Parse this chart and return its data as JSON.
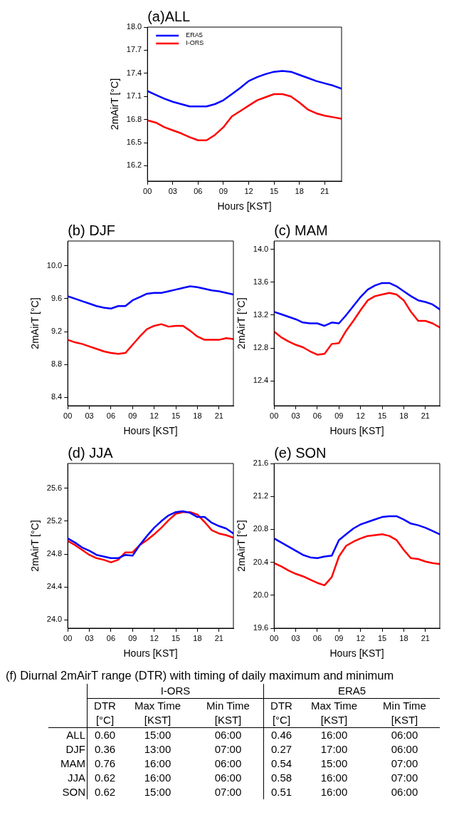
{
  "chart_data": [
    {
      "type": "line",
      "title": "(a)ALL",
      "xlabel": "Hours [KST]",
      "ylabel": "2mAirT [°C]",
      "legend": "top left",
      "x": [
        0,
        1,
        2,
        3,
        4,
        5,
        6,
        7,
        8,
        9,
        10,
        11,
        12,
        13,
        14,
        15,
        16,
        17,
        18,
        19,
        20,
        21,
        22,
        23
      ],
      "xlim": [
        0,
        23
      ],
      "xticks": [
        {
          "value": 0,
          "label": "00"
        },
        {
          "value": 3,
          "label": "03"
        },
        {
          "value": 6,
          "label": "06"
        },
        {
          "value": 9,
          "label": "09"
        },
        12,
        15,
        18,
        21
      ],
      "ylim": [
        16.0,
        18.0
      ],
      "yticks": [
        16.2,
        16.5,
        16.8,
        17.1,
        17.4,
        17.7,
        {
          "value": 18,
          "label": "18.0"
        }
      ],
      "series": [
        {
          "name": "ERA5",
          "color": "#0000ff",
          "values": [
            17.17,
            17.12,
            17.07,
            17.03,
            17.0,
            16.97,
            16.97,
            16.97,
            17.0,
            17.05,
            17.13,
            17.21,
            17.3,
            17.35,
            17.39,
            17.42,
            17.43,
            17.42,
            17.38,
            17.34,
            17.3,
            17.27,
            17.24,
            17.2
          ]
        },
        {
          "name": "I-ORS",
          "color": "#ff0000",
          "values": [
            16.79,
            16.76,
            16.7,
            16.66,
            16.62,
            16.57,
            16.53,
            16.53,
            16.6,
            16.7,
            16.84,
            16.91,
            16.98,
            17.05,
            17.09,
            17.13,
            17.13,
            17.1,
            17.02,
            16.93,
            16.88,
            16.85,
            16.83,
            16.81
          ]
        }
      ]
    },
    {
      "type": "line",
      "title": "(b) DJF",
      "xlabel": "Hours [KST]",
      "ylabel": "2mAirT [°C]",
      "x": [
        0,
        1,
        2,
        3,
        4,
        5,
        6,
        7,
        8,
        9,
        10,
        11,
        12,
        13,
        14,
        15,
        16,
        17,
        18,
        19,
        20,
        21,
        22,
        23
      ],
      "xlim": [
        0,
        23
      ],
      "xticks": [
        {
          "value": 0,
          "label": "00"
        },
        {
          "value": 3,
          "label": "03"
        },
        {
          "value": 6,
          "label": "06"
        },
        {
          "value": 9,
          "label": "09"
        },
        12,
        15,
        18,
        21
      ],
      "ylim": [
        8.3,
        10.3
      ],
      "yticks": [
        8.4,
        8.8,
        9.2,
        9.6,
        {
          "value": 10,
          "label": "10.0"
        }
      ],
      "series": [
        {
          "color": "#0000ff",
          "values": [
            9.63,
            9.6,
            9.57,
            9.54,
            9.51,
            9.49,
            9.48,
            9.51,
            9.51,
            9.58,
            9.62,
            9.66,
            9.67,
            9.67,
            9.69,
            9.71,
            9.73,
            9.75,
            9.74,
            9.72,
            9.7,
            9.69,
            9.67,
            9.65
          ]
        },
        {
          "color": "#ff0000",
          "values": [
            9.1,
            9.07,
            9.05,
            9.02,
            8.99,
            8.96,
            8.94,
            8.93,
            8.94,
            9.04,
            9.14,
            9.23,
            9.27,
            9.29,
            9.26,
            9.27,
            9.27,
            9.21,
            9.14,
            9.1,
            9.1,
            9.1,
            9.12,
            9.11
          ]
        }
      ]
    },
    {
      "type": "line",
      "title": "(c) MAM",
      "xlabel": "Hours [KST]",
      "ylabel": "2mAirT [°C]",
      "x": [
        0,
        1,
        2,
        3,
        4,
        5,
        6,
        7,
        8,
        9,
        10,
        11,
        12,
        13,
        14,
        15,
        16,
        17,
        18,
        19,
        20,
        21,
        22,
        23
      ],
      "xlim": [
        0,
        23
      ],
      "xticks": [
        {
          "value": 0,
          "label": "00"
        },
        {
          "value": 3,
          "label": "03"
        },
        {
          "value": 6,
          "label": "06"
        },
        {
          "value": 9,
          "label": "09"
        },
        12,
        15,
        18,
        21
      ],
      "ylim": [
        12.1,
        14.1
      ],
      "yticks": [
        12.4,
        12.8,
        13.2,
        13.6,
        {
          "value": 14,
          "label": "14.0"
        }
      ],
      "series": [
        {
          "color": "#0000ff",
          "values": [
            13.24,
            13.21,
            13.18,
            13.15,
            13.11,
            13.1,
            13.1,
            13.07,
            13.11,
            13.1,
            13.2,
            13.31,
            13.42,
            13.51,
            13.56,
            13.59,
            13.59,
            13.55,
            13.49,
            13.43,
            13.38,
            13.36,
            13.33,
            13.27
          ]
        },
        {
          "color": "#ff0000",
          "values": [
            13.0,
            12.93,
            12.88,
            12.84,
            12.81,
            12.76,
            12.72,
            12.73,
            12.85,
            12.86,
            13.01,
            13.13,
            13.26,
            13.38,
            13.43,
            13.45,
            13.47,
            13.45,
            13.38,
            13.24,
            13.13,
            13.13,
            13.1,
            13.05
          ]
        }
      ]
    },
    {
      "type": "line",
      "title": "(d) JJA",
      "xlabel": "Hours [KST]",
      "ylabel": "2mAirT [°C]",
      "x": [
        0,
        1,
        2,
        3,
        4,
        5,
        6,
        7,
        8,
        9,
        10,
        11,
        12,
        13,
        14,
        15,
        16,
        17,
        18,
        19,
        20,
        21,
        22,
        23
      ],
      "xlim": [
        0,
        23
      ],
      "xticks": [
        {
          "value": 0,
          "label": "00"
        },
        {
          "value": 3,
          "label": "03"
        },
        {
          "value": 6,
          "label": "06"
        },
        {
          "value": 9,
          "label": "09"
        },
        12,
        15,
        18,
        21
      ],
      "ylim": [
        23.9,
        25.9
      ],
      "yticks": [
        {
          "value": 24,
          "label": "24.0"
        },
        24.4,
        24.8,
        25.2,
        25.6
      ],
      "series": [
        {
          "color": "#0000ff",
          "values": [
            24.99,
            24.94,
            24.88,
            24.84,
            24.79,
            24.77,
            24.75,
            24.75,
            24.79,
            24.78,
            24.91,
            25.02,
            25.12,
            25.2,
            25.27,
            25.31,
            25.32,
            25.3,
            25.25,
            25.25,
            25.18,
            25.14,
            25.11,
            25.05
          ]
        },
        {
          "color": "#ff0000",
          "values": [
            24.96,
            24.91,
            24.85,
            24.79,
            24.75,
            24.73,
            24.7,
            24.73,
            24.82,
            24.82,
            24.91,
            24.97,
            25.04,
            25.12,
            25.21,
            25.29,
            25.31,
            25.31,
            25.28,
            25.19,
            25.09,
            25.05,
            25.03,
            25.0
          ]
        }
      ]
    },
    {
      "type": "line",
      "title": "(e) SON",
      "xlabel": "Hours [KST]",
      "ylabel": "2mAirT [°C]",
      "x": [
        0,
        1,
        2,
        3,
        4,
        5,
        6,
        7,
        8,
        9,
        10,
        11,
        12,
        13,
        14,
        15,
        16,
        17,
        18,
        19,
        20,
        21,
        22,
        23
      ],
      "xlim": [
        0,
        23
      ],
      "xticks": [
        {
          "value": 0,
          "label": "00"
        },
        {
          "value": 3,
          "label": "03"
        },
        {
          "value": 6,
          "label": "06"
        },
        {
          "value": 9,
          "label": "09"
        },
        12,
        15,
        18,
        21
      ],
      "ylim": [
        19.6,
        21.6
      ],
      "yticks": [
        19.6,
        {
          "value": 20,
          "label": "20.0"
        },
        20.4,
        20.8,
        21.2,
        21.6
      ],
      "series": [
        {
          "color": "#0000ff",
          "values": [
            20.69,
            20.64,
            20.59,
            20.54,
            20.49,
            20.46,
            20.45,
            20.47,
            20.48,
            20.67,
            20.74,
            20.81,
            20.86,
            20.89,
            20.92,
            20.95,
            20.96,
            20.96,
            20.92,
            20.87,
            20.85,
            20.82,
            20.78,
            20.74
          ]
        },
        {
          "color": "#ff0000",
          "values": [
            20.39,
            20.35,
            20.3,
            20.26,
            20.23,
            20.19,
            20.15,
            20.12,
            20.22,
            20.47,
            20.6,
            20.65,
            20.69,
            20.72,
            20.73,
            20.74,
            20.72,
            20.67,
            20.55,
            20.45,
            20.44,
            20.41,
            20.39,
            20.38
          ]
        }
      ]
    },
    {
      "type": "other",
      "title": "(f) Diurnal 2mAirT range (DTR) with timing of daily maximum and minimum",
      "annotations": [
        "I-ORS",
        "ERA5",
        "DTR [°C]",
        "Max Time [KST]",
        "Min Time [KST]",
        "DTR [°C]",
        "Max Time [KST]",
        "Min Time [KST]",
        "ALL",
        "0.60",
        "15:00",
        "06:00",
        "0.46",
        "16:00",
        "06:00",
        "DJF",
        "0.36",
        "13:00",
        "07:00",
        "0.27",
        "17:00",
        "06:00",
        "MAM",
        "0.76",
        "16:00",
        "06:00",
        "0.54",
        "15:00",
        "07:00",
        "JJA",
        "0.62",
        "16:00",
        "06:00",
        "0.58",
        "16:00",
        "07:00",
        "SON",
        "0.62",
        "15:00",
        "07:00",
        "0.51",
        "16:00",
        "06:00"
      ]
    }
  ]
}
